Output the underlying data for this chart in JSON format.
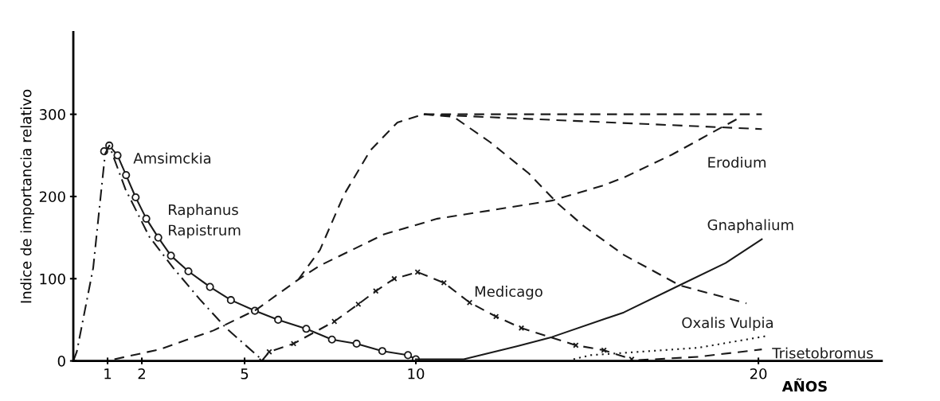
{
  "chart_data": {
    "type": "line",
    "ylabel": "Indice de importancia relativo",
    "xlabel": "AÑOS",
    "xlim": [
      0,
      23.6
    ],
    "ylim": [
      0,
      400
    ],
    "xticks": [
      1,
      2,
      5,
      10,
      20
    ],
    "yticks": [
      0,
      100,
      200,
      300
    ],
    "grid": false,
    "legend": false,
    "annotations": [
      "Raphanus Rapistrum"
    ],
    "series": [
      {
        "name": "Amsimckia",
        "color": "#1a1a1a",
        "line_style": "solid",
        "marker": "circle",
        "x": [
          0.9,
          1.05,
          1.29,
          1.54,
          1.82,
          2.13,
          2.48,
          2.85,
          3.36,
          3.99,
          4.6,
          5.3,
          5.98,
          6.8,
          7.55,
          8.27,
          9.02,
          9.77,
          10.0
        ],
        "values": [
          255,
          262,
          250,
          226,
          199,
          173,
          150,
          128,
          109,
          90,
          74,
          61,
          50,
          39,
          26,
          21,
          12,
          7,
          2
        ]
      },
      {
        "color": "#1a1a1a",
        "line_style": "dashdot",
        "x": [
          0,
          0.1,
          0.58,
          0.82,
          0.93,
          1.05,
          1.52,
          2.22,
          2.92,
          3.69,
          4.46,
          5.49
        ],
        "values": [
          0,
          11,
          113,
          209,
          252,
          262,
          209,
          151,
          113,
          75,
          40,
          2
        ]
      },
      {
        "name": "Medicago",
        "color": "#1a1a1a",
        "line_style": "dashed",
        "marker": "cross",
        "x": [
          5.5,
          5.72,
          6.43,
          7.62,
          8.32,
          8.83,
          9.37,
          10.05,
          10.82,
          11.57,
          12.34,
          13.08,
          14.67,
          15.49,
          16.3
        ],
        "values": [
          0,
          11,
          21,
          48,
          69,
          85,
          100,
          108,
          95,
          71,
          54,
          40,
          19,
          13,
          2
        ]
      },
      {
        "name": "Erodium",
        "color": "#1a1a1a",
        "line_style": "dashed",
        "x": [
          1.2,
          2.52,
          4.09,
          5.33,
          6.57,
          7.2,
          9.07,
          10.63,
          12.17,
          13.97,
          15.44,
          16.07,
          17.48,
          18.88,
          19.5
        ],
        "values": [
          2,
          14,
          37,
          62,
          99,
          116,
          154,
          173,
          183,
          195,
          213,
          223,
          251,
          283,
          297
        ]
      },
      {
        "color": "#1a1a1a",
        "line_style": "dashed",
        "x": [
          6.57,
          7.2,
          7.9,
          8.67,
          9.46,
          10.23,
          20.1
        ],
        "values": [
          99,
          135,
          202,
          256,
          290,
          300,
          300
        ]
      },
      {
        "color": "#1a1a1a",
        "line_style": "dashed",
        "x": [
          10.23,
          20.1
        ],
        "values": [
          300,
          282
        ]
      },
      {
        "color": "#1a1a1a",
        "line_style": "dashed",
        "x": [
          10.23,
          11.1,
          12.17,
          13.3,
          14.13,
          14.9,
          16.07,
          17.7,
          19.65
        ],
        "values": [
          300,
          297,
          266,
          228,
          192,
          164,
          129,
          92,
          70
        ]
      },
      {
        "name": "Gnaphalium",
        "color": "#1a1a1a",
        "line_style": "solid",
        "x": [
          10.0,
          11.4,
          12.97,
          13.97,
          16.07,
          17.7,
          19.04,
          20.1
        ],
        "values": [
          2,
          2,
          18,
          29,
          59,
          92,
          119,
          148
        ]
      },
      {
        "name": "Oxalis Vulpia",
        "color": "#1a1a1a",
        "line_style": "dotted",
        "x": [
          14.6,
          15.1,
          18.25,
          20.2
        ],
        "values": [
          2,
          7,
          16,
          30
        ]
      },
      {
        "name": "Trisetobromus",
        "color": "#1a1a1a",
        "line_style": "dashed",
        "x": [
          16.5,
          18.25,
          20.1
        ],
        "values": [
          1,
          5,
          14
        ]
      }
    ]
  }
}
